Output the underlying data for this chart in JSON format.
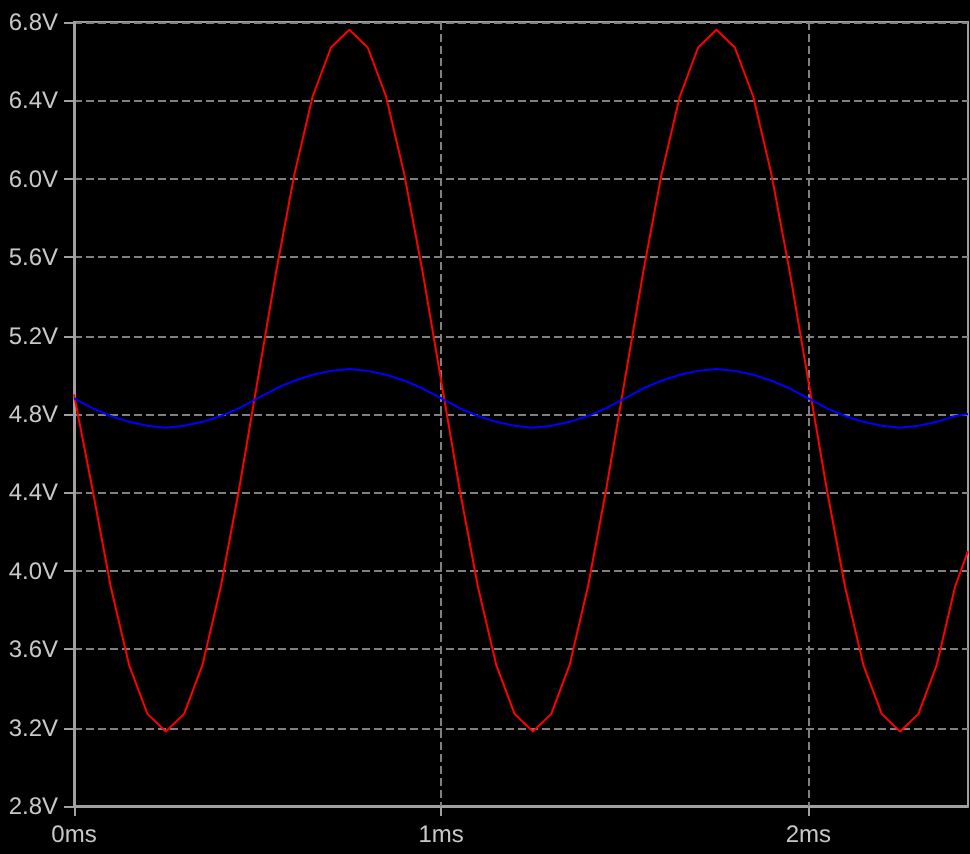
{
  "chart_data": {
    "type": "line",
    "x": [
      0,
      0.05,
      0.1,
      0.15,
      0.2,
      0.25,
      0.3,
      0.35,
      0.4,
      0.45,
      0.5,
      0.55,
      0.6,
      0.65,
      0.7,
      0.75,
      0.8,
      0.85,
      0.9,
      0.95,
      1,
      1.05,
      1.1,
      1.15,
      1.2,
      1.25,
      1.3,
      1.35,
      1.4,
      1.45,
      1.5,
      1.55,
      1.6,
      1.65,
      1.7,
      1.75,
      1.8,
      1.85,
      1.9,
      1.95,
      2,
      2.05,
      2.1,
      2.15,
      2.2,
      2.25,
      2.3,
      2.35,
      2.4,
      2.435
    ],
    "series": [
      {
        "color": "#ff0000",
        "values": [
          4.9,
          4.42,
          3.92,
          3.52,
          3.27,
          3.18,
          3.27,
          3.52,
          3.92,
          4.42,
          4.97,
          5.52,
          6.02,
          6.42,
          6.67,
          6.76,
          6.67,
          6.42,
          6.02,
          5.52,
          4.97,
          4.42,
          3.92,
          3.52,
          3.27,
          3.18,
          3.27,
          3.52,
          3.92,
          4.42,
          4.97,
          5.52,
          6.02,
          6.42,
          6.67,
          6.76,
          6.67,
          6.42,
          6.02,
          5.52,
          4.97,
          4.42,
          3.92,
          3.52,
          3.27,
          3.18,
          3.27,
          3.52,
          3.92,
          4.1
        ]
      },
      {
        "color": "#0000ff",
        "values": [
          4.88,
          4.83,
          4.79,
          4.76,
          4.74,
          4.73,
          4.74,
          4.76,
          4.79,
          4.83,
          4.88,
          4.93,
          4.97,
          5.0,
          5.02,
          5.03,
          5.02,
          5.0,
          4.97,
          4.93,
          4.88,
          4.83,
          4.79,
          4.76,
          4.74,
          4.73,
          4.74,
          4.76,
          4.79,
          4.83,
          4.88,
          4.93,
          4.97,
          5.0,
          5.02,
          5.03,
          5.02,
          5.0,
          4.97,
          4.93,
          4.88,
          4.83,
          4.79,
          4.76,
          4.74,
          4.73,
          4.74,
          4.76,
          4.79,
          4.8
        ]
      }
    ],
    "xlim": [
      0,
      2.435
    ],
    "xticks": [
      {
        "value": 0,
        "label": "0ms"
      },
      {
        "value": 1,
        "label": "1ms"
      },
      {
        "value": 2,
        "label": "2ms"
      }
    ],
    "ylim": [
      2.8,
      6.8
    ],
    "yticks": [
      {
        "value": 2.8,
        "label": "2.8V"
      },
      {
        "value": 3.2,
        "label": "3.2V"
      },
      {
        "value": 3.6,
        "label": "3.6V"
      },
      {
        "value": 4.0,
        "label": "4.0V"
      },
      {
        "value": 4.4,
        "label": "4.4V"
      },
      {
        "value": 4.8,
        "label": "4.8V"
      },
      {
        "value": 5.2,
        "label": "5.2V"
      },
      {
        "value": 5.6,
        "label": "5.6V"
      },
      {
        "value": 6.0,
        "label": "6.0V"
      },
      {
        "value": 6.4,
        "label": "6.4V"
      },
      {
        "value": 6.8,
        "label": "6.8V"
      }
    ],
    "grid": true,
    "marker": "none",
    "line_style": "solid"
  }
}
